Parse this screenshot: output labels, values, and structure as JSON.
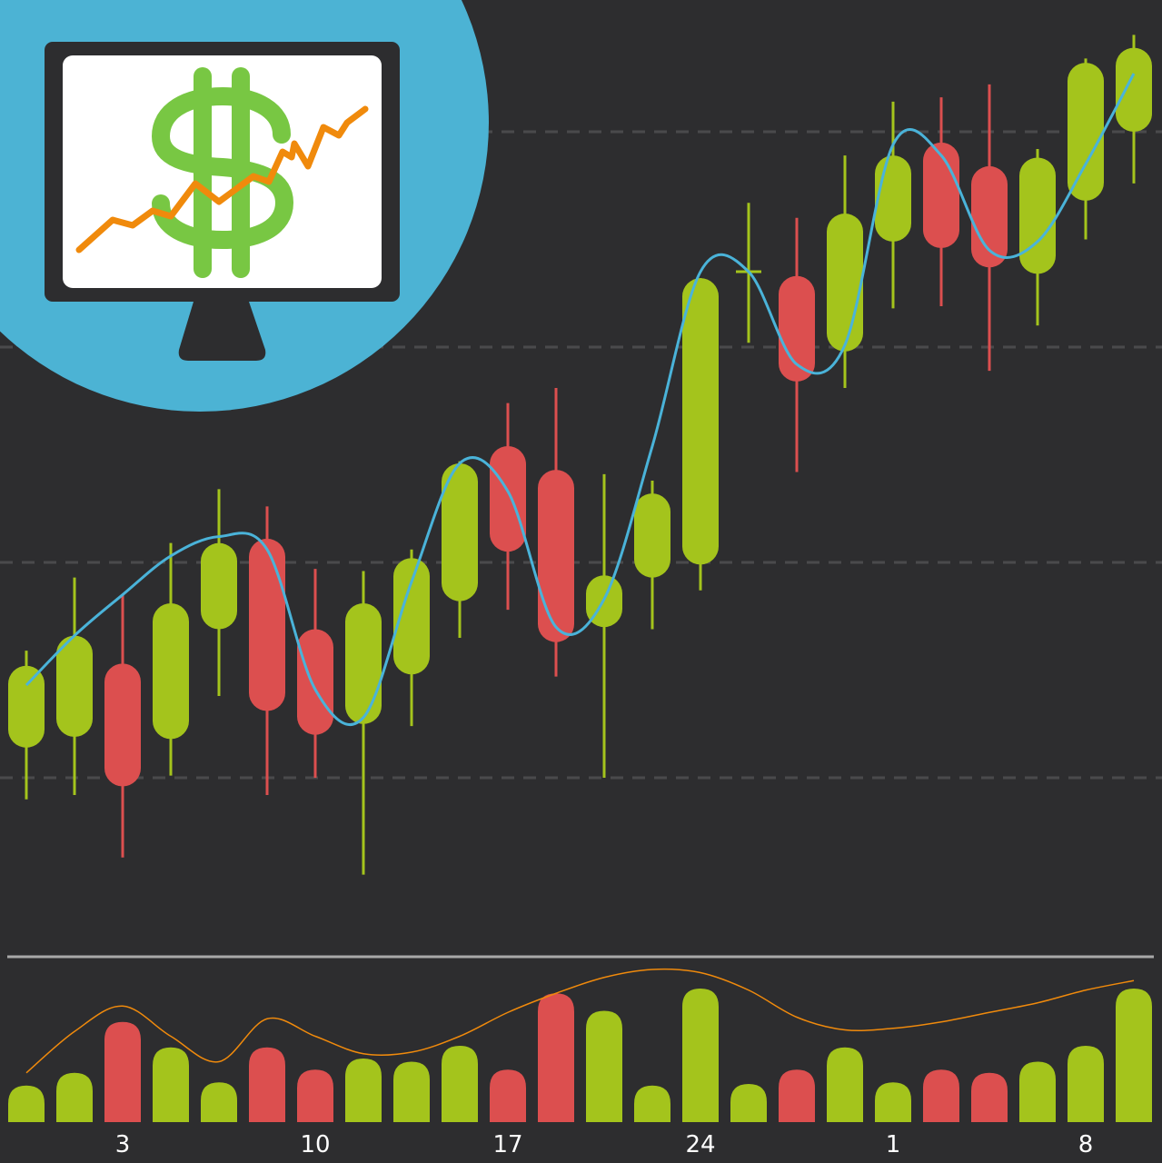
{
  "chart_data": {
    "type": "candlestick",
    "title": "",
    "xlabel": "",
    "ylabel": "",
    "x_tick_labels": [
      "",
      "",
      "3",
      "",
      "",
      "",
      "10",
      "",
      "",
      "",
      "17",
      "",
      "",
      "",
      "24",
      "",
      "",
      "",
      "1",
      "",
      "",
      "",
      "8",
      ""
    ],
    "price_ylim": [
      0.2,
      4.6
    ],
    "grid": {
      "horizontal": true,
      "style": "dashed",
      "levels": [
        1,
        2,
        3,
        4
      ]
    },
    "candles": [
      {
        "open": 1.14,
        "high": 1.59,
        "low": 0.9,
        "close": 1.52
      },
      {
        "open": 1.19,
        "high": 1.93,
        "low": 0.92,
        "close": 1.66
      },
      {
        "open": 1.53,
        "high": 1.85,
        "low": 0.63,
        "close": 0.96
      },
      {
        "open": 1.18,
        "high": 2.09,
        "low": 1.01,
        "close": 1.81
      },
      {
        "open": 1.69,
        "high": 2.34,
        "low": 1.38,
        "close": 2.09
      },
      {
        "open": 2.11,
        "high": 2.26,
        "low": 0.92,
        "close": 1.31
      },
      {
        "open": 1.69,
        "high": 1.97,
        "low": 1.0,
        "close": 1.2
      },
      {
        "open": 1.25,
        "high": 1.96,
        "low": 0.55,
        "close": 1.81
      },
      {
        "open": 1.48,
        "high": 2.06,
        "low": 1.24,
        "close": 2.02
      },
      {
        "open": 1.82,
        "high": 2.47,
        "low": 1.65,
        "close": 2.46
      },
      {
        "open": 2.54,
        "high": 2.74,
        "low": 1.78,
        "close": 2.05
      },
      {
        "open": 2.43,
        "high": 2.81,
        "low": 1.47,
        "close": 1.63
      },
      {
        "open": 1.7,
        "high": 2.41,
        "low": 1.0,
        "close": 1.94
      },
      {
        "open": 1.93,
        "high": 2.38,
        "low": 1.69,
        "close": 2.32
      },
      {
        "open": 1.99,
        "high": 3.32,
        "low": 1.87,
        "close": 3.32
      },
      {
        "open": 3.34,
        "high": 3.67,
        "low": 3.02,
        "close": 3.35
      },
      {
        "open": 3.33,
        "high": 3.6,
        "low": 2.42,
        "close": 2.84
      },
      {
        "open": 2.98,
        "high": 3.89,
        "low": 2.81,
        "close": 3.62
      },
      {
        "open": 3.49,
        "high": 4.14,
        "low": 3.18,
        "close": 3.89
      },
      {
        "open": 3.95,
        "high": 4.16,
        "low": 3.19,
        "close": 3.46
      },
      {
        "open": 3.84,
        "high": 4.22,
        "low": 2.89,
        "close": 3.37
      },
      {
        "open": 3.34,
        "high": 3.92,
        "low": 3.1,
        "close": 3.88
      },
      {
        "open": 3.68,
        "high": 4.34,
        "low": 3.5,
        "close": 4.32
      },
      {
        "open": 4.0,
        "high": 4.45,
        "low": 3.76,
        "close": 4.39
      }
    ],
    "moving_average": [
      1.43,
      1.66,
      1.85,
      2.03,
      2.12,
      2.06,
      1.41,
      1.28,
      1.91,
      2.46,
      2.33,
      1.7,
      1.83,
      2.54,
      3.35,
      3.35,
      2.92,
      3.01,
      3.94,
      3.89,
      3.45,
      3.49,
      3.85,
      4.27
    ],
    "volume": [
      23,
      31,
      63,
      47,
      25,
      47,
      33,
      40,
      38,
      48,
      33,
      81,
      70,
      23,
      84,
      24,
      33,
      47,
      25,
      33,
      31,
      38,
      48,
      84
    ],
    "volume_moving_average": [
      31,
      57,
      73,
      54,
      38,
      65,
      54,
      43,
      44,
      54,
      69,
      81,
      91,
      96,
      94,
      83,
      66,
      58,
      59,
      63,
      69,
      75,
      83,
      89
    ],
    "volume_ylim": [
      0,
      100
    ]
  },
  "colors": {
    "background": "#2d2d2f",
    "up": "#a4c41c",
    "down": "#dc4f4f",
    "moving_average": "#4ab3d9",
    "volume_average": "#f08a0c",
    "grid": "#4a4a4c",
    "separator": "#a8a8a8",
    "badge_circle": "#4cb3d4",
    "dollar": "#78c743",
    "monitor": "#2d2d2f"
  },
  "icons": {
    "badge": "monitor-dollar-growth-icon"
  }
}
